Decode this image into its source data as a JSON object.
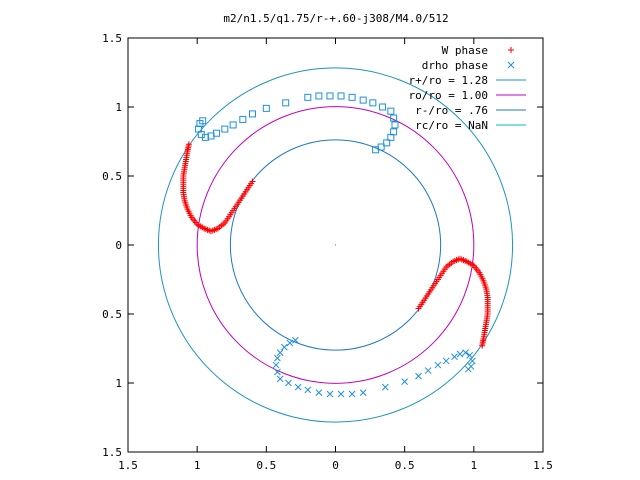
{
  "chart_data": {
    "type": "scatter",
    "title": "m2/n1.5/q1.75/r-+.60-j308/M4.0/512",
    "xlabel": "",
    "ylabel": "",
    "xlim": [
      -1.5,
      1.5
    ],
    "ylim": [
      -1.5,
      1.5
    ],
    "x_tick_labels": [
      "1.5",
      "1",
      "0.5",
      "0",
      "0.5",
      "1",
      "1.5"
    ],
    "y_tick_labels": [
      "1.5",
      "1",
      "0.5",
      "0",
      "0.5",
      "1",
      "1.5"
    ],
    "grid": false,
    "legend_position": "top-right",
    "circles": [
      {
        "label": "r+/ro = 1.28",
        "r": 1.28,
        "color": "#1f93c4"
      },
      {
        "label": "ro/ro = 1.00",
        "r": 1.0,
        "color": "#c000c0"
      },
      {
        "label": "r-/ro = .76",
        "r": 0.76,
        "color": "#1f78c4"
      },
      {
        "label": "rc/ro = NaN",
        "r": null,
        "color": "#00c0c0"
      }
    ],
    "series": [
      {
        "name": "W phase",
        "marker": "plus",
        "color": "#ff0000",
        "points": [
          [
            -1.06,
            0.73
          ],
          [
            -1.07,
            0.68
          ],
          [
            -1.08,
            0.62
          ],
          [
            -1.09,
            0.56
          ],
          [
            -1.1,
            0.5
          ],
          [
            -1.1,
            0.44
          ],
          [
            -1.1,
            0.38
          ],
          [
            -1.09,
            0.32
          ],
          [
            -1.07,
            0.26
          ],
          [
            -1.04,
            0.2
          ],
          [
            -1.0,
            0.15
          ],
          [
            -0.95,
            0.12
          ],
          [
            -0.9,
            0.1
          ],
          [
            -0.85,
            0.12
          ],
          [
            -0.8,
            0.16
          ],
          [
            -0.76,
            0.22
          ],
          [
            -0.72,
            0.28
          ],
          [
            -0.68,
            0.34
          ],
          [
            -0.64,
            0.4
          ],
          [
            -0.6,
            0.46
          ],
          [
            1.06,
            -0.73
          ],
          [
            1.07,
            -0.68
          ],
          [
            1.08,
            -0.62
          ],
          [
            1.09,
            -0.56
          ],
          [
            1.1,
            -0.5
          ],
          [
            1.1,
            -0.44
          ],
          [
            1.1,
            -0.38
          ],
          [
            1.09,
            -0.32
          ],
          [
            1.07,
            -0.26
          ],
          [
            1.04,
            -0.2
          ],
          [
            1.0,
            -0.15
          ],
          [
            0.95,
            -0.12
          ],
          [
            0.9,
            -0.1
          ],
          [
            0.85,
            -0.12
          ],
          [
            0.8,
            -0.16
          ],
          [
            0.76,
            -0.22
          ],
          [
            0.72,
            -0.28
          ],
          [
            0.68,
            -0.34
          ],
          [
            0.64,
            -0.4
          ],
          [
            0.6,
            -0.46
          ]
        ]
      },
      {
        "name": "drho phase",
        "marker": "cross",
        "color": "#1e90e0",
        "points": [
          [
            -0.42,
            -0.92
          ],
          [
            -0.43,
            -0.87
          ],
          [
            -0.42,
            -0.82
          ],
          [
            -0.4,
            -0.78
          ],
          [
            -0.37,
            -0.74
          ],
          [
            -0.33,
            -0.71
          ],
          [
            -0.29,
            -0.69
          ],
          [
            -0.4,
            -0.97
          ],
          [
            -0.34,
            -1.0
          ],
          [
            -0.27,
            -1.03
          ],
          [
            -0.2,
            -1.05
          ],
          [
            -0.12,
            -1.07
          ],
          [
            -0.04,
            -1.08
          ],
          [
            0.04,
            -1.08
          ],
          [
            0.12,
            -1.08
          ],
          [
            0.2,
            -1.07
          ],
          [
            0.36,
            -1.03
          ],
          [
            0.5,
            -0.99
          ],
          [
            0.6,
            -0.95
          ],
          [
            0.67,
            -0.91
          ],
          [
            0.74,
            -0.87
          ],
          [
            0.8,
            -0.84
          ],
          [
            0.86,
            -0.81
          ],
          [
            0.9,
            -0.79
          ],
          [
            0.94,
            -0.78
          ],
          [
            0.97,
            -0.8
          ],
          [
            0.99,
            -0.84
          ],
          [
            0.98,
            -0.88
          ],
          [
            0.96,
            -0.9
          ]
        ]
      },
      {
        "name": "drho phase",
        "marker": "square",
        "color": "#1e90e0",
        "points": [
          [
            0.42,
            0.92
          ],
          [
            0.43,
            0.87
          ],
          [
            0.42,
            0.82
          ],
          [
            0.4,
            0.78
          ],
          [
            0.37,
            0.74
          ],
          [
            0.33,
            0.71
          ],
          [
            0.29,
            0.69
          ],
          [
            0.4,
            0.97
          ],
          [
            0.34,
            1.0
          ],
          [
            0.27,
            1.03
          ],
          [
            0.2,
            1.05
          ],
          [
            0.12,
            1.07
          ],
          [
            0.04,
            1.08
          ],
          [
            -0.04,
            1.08
          ],
          [
            -0.12,
            1.08
          ],
          [
            -0.2,
            1.07
          ],
          [
            -0.36,
            1.03
          ],
          [
            -0.5,
            0.99
          ],
          [
            -0.6,
            0.95
          ],
          [
            -0.67,
            0.91
          ],
          [
            -0.74,
            0.87
          ],
          [
            -0.8,
            0.84
          ],
          [
            -0.86,
            0.81
          ],
          [
            -0.9,
            0.79
          ],
          [
            -0.94,
            0.78
          ],
          [
            -0.97,
            0.8
          ],
          [
            -0.99,
            0.84
          ],
          [
            -0.98,
            0.88
          ],
          [
            -0.96,
            0.9
          ]
        ]
      }
    ]
  }
}
